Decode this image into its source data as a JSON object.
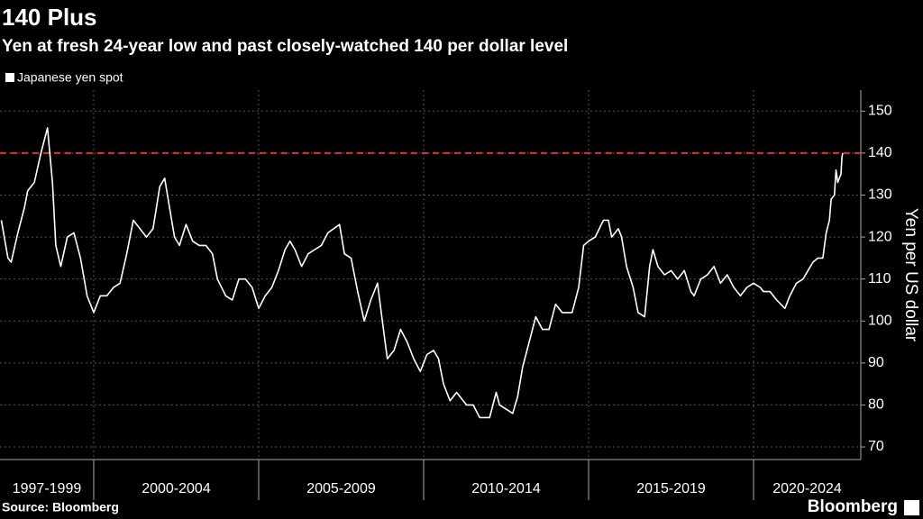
{
  "chart_data": {
    "type": "line",
    "title": "140 Plus",
    "subtitle": "Yen at fresh 24-year low and past closely-watched 140 per dollar level",
    "y_label": "Yen per US dollar",
    "source": "Source: Bloomberg",
    "brand": "Bloomberg",
    "x": [
      1997.2,
      1997.4,
      1997.5,
      1997.7,
      1997.9,
      1998.0,
      1998.2,
      1998.4,
      1998.6,
      1998.75,
      1998.85,
      1999.0,
      1999.2,
      1999.4,
      1999.6,
      1999.8,
      2000.0,
      2000.2,
      2000.4,
      2000.6,
      2000.8,
      2001.0,
      2001.2,
      2001.4,
      2001.6,
      2001.8,
      2002.0,
      2002.15,
      2002.3,
      2002.45,
      2002.6,
      2002.8,
      2003.0,
      2003.2,
      2003.4,
      2003.6,
      2003.75,
      2004.0,
      2004.2,
      2004.4,
      2004.6,
      2004.8,
      2005.0,
      2005.2,
      2005.4,
      2005.6,
      2005.8,
      2005.95,
      2006.1,
      2006.3,
      2006.5,
      2006.7,
      2006.9,
      2007.1,
      2007.45,
      2007.6,
      2007.8,
      2008.0,
      2008.2,
      2008.4,
      2008.6,
      2008.75,
      2008.9,
      2009.1,
      2009.3,
      2009.5,
      2009.7,
      2009.9,
      2010.1,
      2010.3,
      2010.45,
      2010.6,
      2010.8,
      2011.0,
      2011.2,
      2011.3,
      2011.5,
      2011.7,
      2011.85,
      2012.0,
      2012.2,
      2012.3,
      2012.5,
      2012.7,
      2012.85,
      2013.0,
      2013.2,
      2013.4,
      2013.6,
      2013.8,
      2014.0,
      2014.2,
      2014.5,
      2014.7,
      2014.85,
      2015.0,
      2015.2,
      2015.45,
      2015.6,
      2015.7,
      2015.9,
      2016.0,
      2016.15,
      2016.35,
      2016.5,
      2016.7,
      2016.85,
      2016.95,
      2017.1,
      2017.3,
      2017.5,
      2017.7,
      2017.9,
      2018.1,
      2018.2,
      2018.4,
      2018.6,
      2018.8,
      2019.0,
      2019.2,
      2019.4,
      2019.6,
      2019.8,
      2020.0,
      2020.2,
      2020.3,
      2020.5,
      2020.7,
      2020.95,
      2021.1,
      2021.3,
      2021.5,
      2021.8,
      2021.95,
      2022.1,
      2022.2,
      2022.3,
      2022.35,
      2022.45,
      2022.5,
      2022.55,
      2022.6,
      2022.65,
      2022.68,
      2022.7
    ],
    "series": [
      {
        "name": "Japanese yen spot",
        "color": "#ffffff",
        "values": [
          124,
          115,
          114,
          121,
          127,
          131,
          133,
          140,
          146,
          133,
          118,
          113,
          120,
          121,
          115,
          106,
          102,
          106,
          106,
          108,
          109,
          116,
          124,
          122,
          120,
          122,
          132,
          134,
          127,
          120,
          118,
          123,
          119,
          118,
          118,
          116,
          110,
          106,
          105,
          110,
          110,
          108,
          103,
          106,
          108,
          112,
          117,
          119,
          117,
          113,
          116,
          117,
          118,
          121,
          123,
          116,
          115,
          107,
          100,
          105,
          109,
          100,
          91,
          93,
          98,
          95,
          91,
          88,
          92,
          93,
          91,
          85,
          81,
          83,
          81,
          80,
          80,
          77,
          77,
          77,
          83,
          80,
          79,
          78,
          82,
          89,
          95,
          101,
          98,
          98,
          104,
          102,
          102,
          108,
          118,
          119,
          120,
          124,
          124,
          120,
          122,
          120,
          113,
          108,
          102,
          101,
          113,
          117,
          113,
          111,
          112,
          110,
          112,
          107,
          106,
          110,
          111,
          113,
          109,
          111,
          108,
          106,
          108,
          109,
          108,
          107,
          107,
          105,
          103,
          106,
          109,
          110,
          114,
          115,
          115,
          121,
          124,
          129,
          130,
          136,
          133,
          134,
          135,
          139,
          140
        ]
      }
    ],
    "xlim": [
      1997.16,
      2023.25
    ],
    "xticks": [
      2000,
      2005,
      2010,
      2015,
      2020
    ],
    "period_labels": [
      "1997-1999",
      "2000-2004",
      "2005-2009",
      "2010-2014",
      "2015-2019",
      "2020-2024"
    ],
    "ylim": [
      67,
      155
    ],
    "yticks": [
      70,
      80,
      90,
      100,
      110,
      120,
      130,
      140,
      150
    ],
    "reference_line": {
      "value": 140,
      "color": "#e0312d"
    },
    "grid": true
  }
}
